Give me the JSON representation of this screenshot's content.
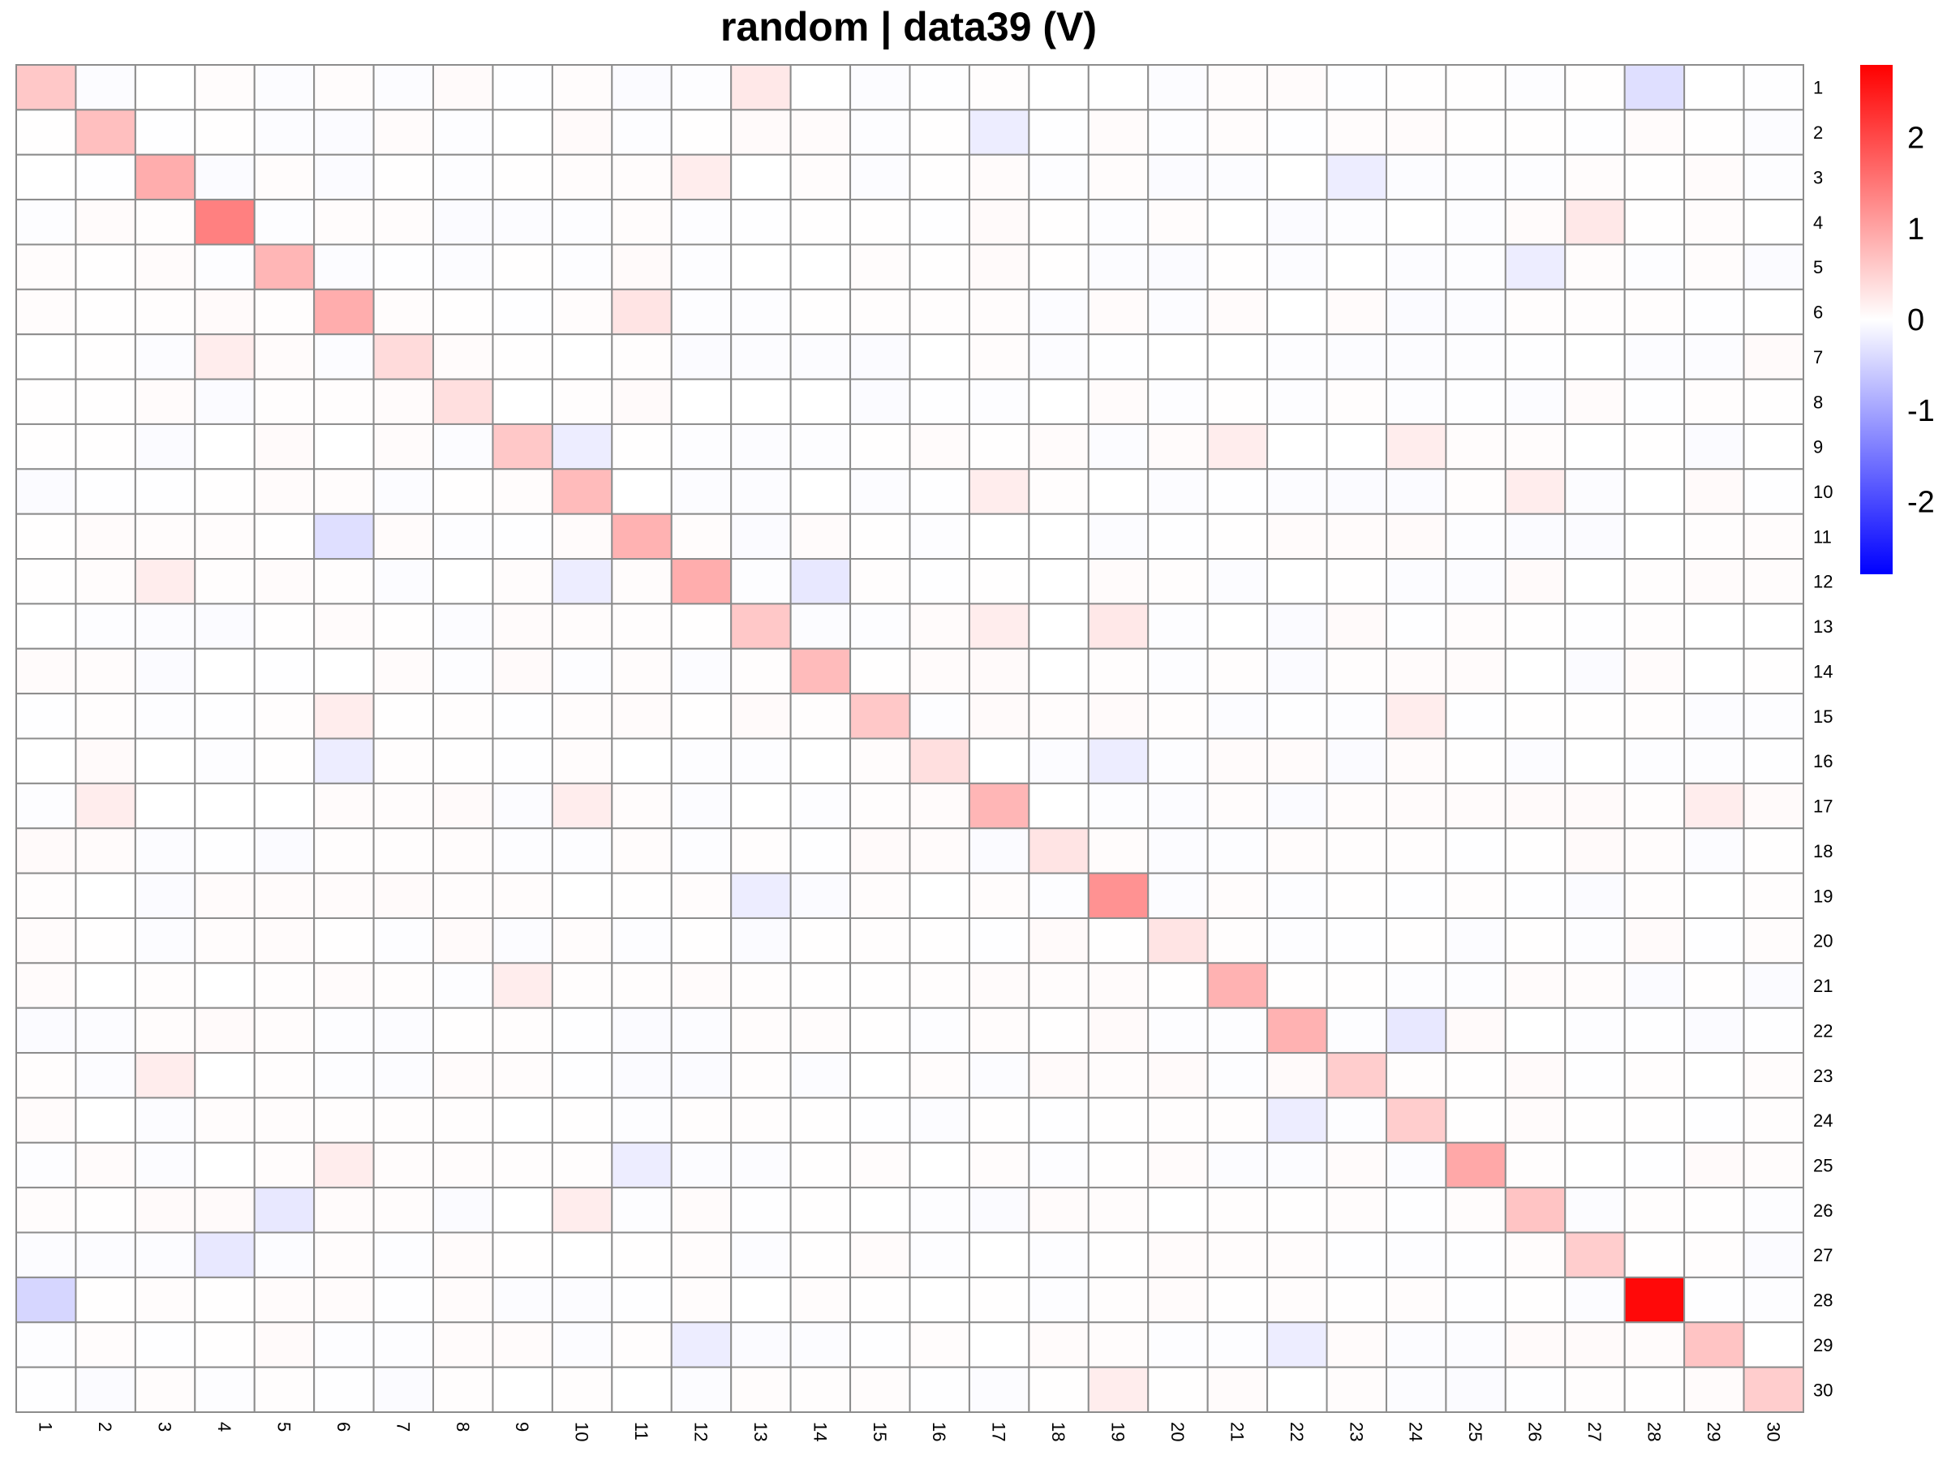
{
  "chart_data": {
    "type": "heatmap",
    "title": "random | data39 (V)",
    "rows": [
      "1",
      "2",
      "3",
      "4",
      "5",
      "6",
      "7",
      "8",
      "9",
      "10",
      "11",
      "12",
      "13",
      "14",
      "15",
      "16",
      "17",
      "18",
      "19",
      "20",
      "21",
      "22",
      "23",
      "24",
      "25",
      "26",
      "27",
      "28",
      "29",
      "30"
    ],
    "columns": [
      "1",
      "2",
      "3",
      "4",
      "5",
      "6",
      "7",
      "8",
      "9",
      "10",
      "11",
      "12",
      "13",
      "14",
      "15",
      "16",
      "17",
      "18",
      "19",
      "20",
      "21",
      "22",
      "23",
      "24",
      "25",
      "26",
      "27",
      "28",
      "29",
      "30"
    ],
    "diagonal": [
      0.6,
      0.7,
      0.9,
      1.4,
      0.8,
      0.9,
      0.4,
      0.35,
      0.6,
      0.75,
      0.85,
      0.9,
      0.6,
      0.75,
      0.6,
      0.35,
      0.8,
      0.3,
      1.2,
      0.3,
      0.85,
      0.85,
      0.55,
      0.55,
      0.95,
      0.65,
      0.55,
      2.7,
      0.65,
      0.55
    ],
    "off_diagonal": [
      {
        "row": "1",
        "col": "13",
        "value": 0.25
      },
      {
        "row": "1",
        "col": "28",
        "value": -0.35
      },
      {
        "row": "2",
        "col": "17",
        "value": -0.2
      },
      {
        "row": "3",
        "col": "12",
        "value": 0.2
      },
      {
        "row": "3",
        "col": "23",
        "value": -0.2
      },
      {
        "row": "4",
        "col": "27",
        "value": 0.25
      },
      {
        "row": "5",
        "col": "26",
        "value": -0.2
      },
      {
        "row": "6",
        "col": "11",
        "value": 0.3
      },
      {
        "row": "7",
        "col": "4",
        "value": 0.2
      },
      {
        "row": "9",
        "col": "10",
        "value": -0.2
      },
      {
        "row": "9",
        "col": "21",
        "value": 0.2
      },
      {
        "row": "9",
        "col": "24",
        "value": 0.2
      },
      {
        "row": "10",
        "col": "17",
        "value": 0.2
      },
      {
        "row": "10",
        "col": "26",
        "value": 0.2
      },
      {
        "row": "11",
        "col": "6",
        "value": -0.35
      },
      {
        "row": "12",
        "col": "3",
        "value": 0.2
      },
      {
        "row": "12",
        "col": "10",
        "value": -0.2
      },
      {
        "row": "12",
        "col": "14",
        "value": -0.25
      },
      {
        "row": "13",
        "col": "17",
        "value": 0.2
      },
      {
        "row": "13",
        "col": "19",
        "value": 0.25
      },
      {
        "row": "15",
        "col": "6",
        "value": 0.2
      },
      {
        "row": "15",
        "col": "24",
        "value": 0.2
      },
      {
        "row": "16",
        "col": "6",
        "value": -0.2
      },
      {
        "row": "16",
        "col": "19",
        "value": -0.2
      },
      {
        "row": "17",
        "col": "2",
        "value": 0.2
      },
      {
        "row": "17",
        "col": "10",
        "value": 0.2
      },
      {
        "row": "17",
        "col": "29",
        "value": 0.2
      },
      {
        "row": "19",
        "col": "13",
        "value": -0.2
      },
      {
        "row": "21",
        "col": "9",
        "value": 0.2
      },
      {
        "row": "22",
        "col": "24",
        "value": -0.25
      },
      {
        "row": "23",
        "col": "3",
        "value": 0.2
      },
      {
        "row": "24",
        "col": "22",
        "value": -0.2
      },
      {
        "row": "25",
        "col": "6",
        "value": 0.2
      },
      {
        "row": "25",
        "col": "11",
        "value": -0.2
      },
      {
        "row": "26",
        "col": "5",
        "value": -0.25
      },
      {
        "row": "26",
        "col": "10",
        "value": 0.2
      },
      {
        "row": "27",
        "col": "4",
        "value": -0.25
      },
      {
        "row": "28",
        "col": "1",
        "value": -0.45
      },
      {
        "row": "29",
        "col": "12",
        "value": -0.2
      },
      {
        "row": "29",
        "col": "22",
        "value": -0.2
      },
      {
        "row": "30",
        "col": "19",
        "value": 0.2
      }
    ],
    "background_noise": 0.05,
    "color_scale": {
      "min": -2.8,
      "max": 2.8,
      "low": "#0000ff",
      "mid": "#ffffff",
      "high": "#ff0000"
    },
    "legend_ticks": [
      "2",
      "1",
      "0",
      "-1",
      "-2"
    ],
    "legend_tick_values": [
      2,
      1,
      0,
      -1,
      -2
    ],
    "cell_border_color": "#8c8c8c"
  }
}
